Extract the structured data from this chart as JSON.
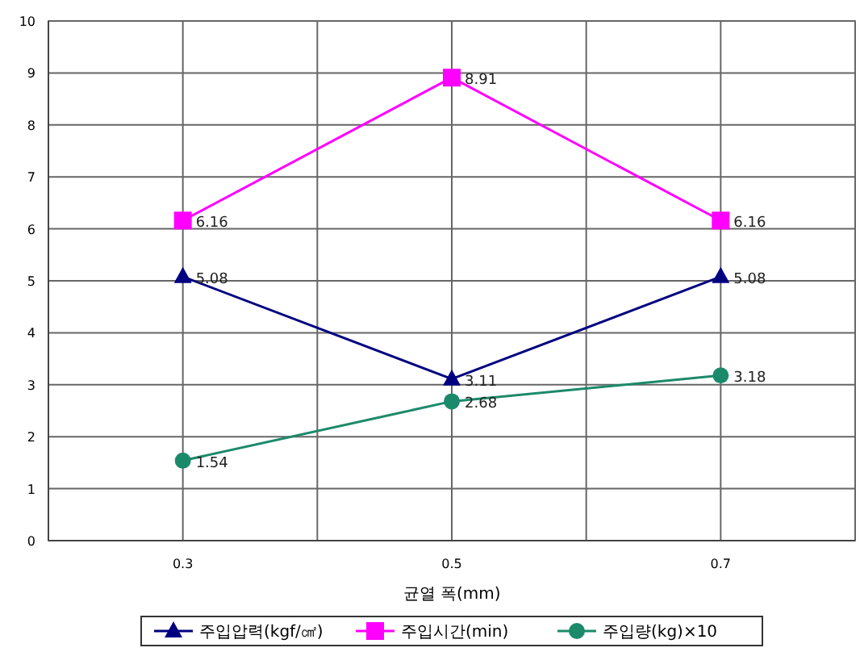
{
  "chart_data": {
    "type": "line",
    "xlabel": "균열 폭(mm)",
    "categories": [
      "0.3",
      "0.5",
      "0.7"
    ],
    "series": [
      {
        "name": "주입압력(kgf/㎠)",
        "color": "#000080",
        "marker": "triangle",
        "values": [
          5.08,
          3.11,
          5.08
        ]
      },
      {
        "name": "주입시간(min)",
        "color": "#ff00ff",
        "marker": "square",
        "values": [
          6.16,
          8.91,
          6.16
        ]
      },
      {
        "name": "주입량(kg)×10",
        "color": "#1b8a6b",
        "marker": "circle",
        "values": [
          1.54,
          2.68,
          3.18
        ]
      }
    ],
    "ylim": [
      0,
      10
    ],
    "yticks": [
      0,
      1,
      2,
      3,
      4,
      5,
      6,
      7,
      8,
      9,
      10
    ],
    "grid": true,
    "legend": "bottom",
    "data_labels": true
  }
}
